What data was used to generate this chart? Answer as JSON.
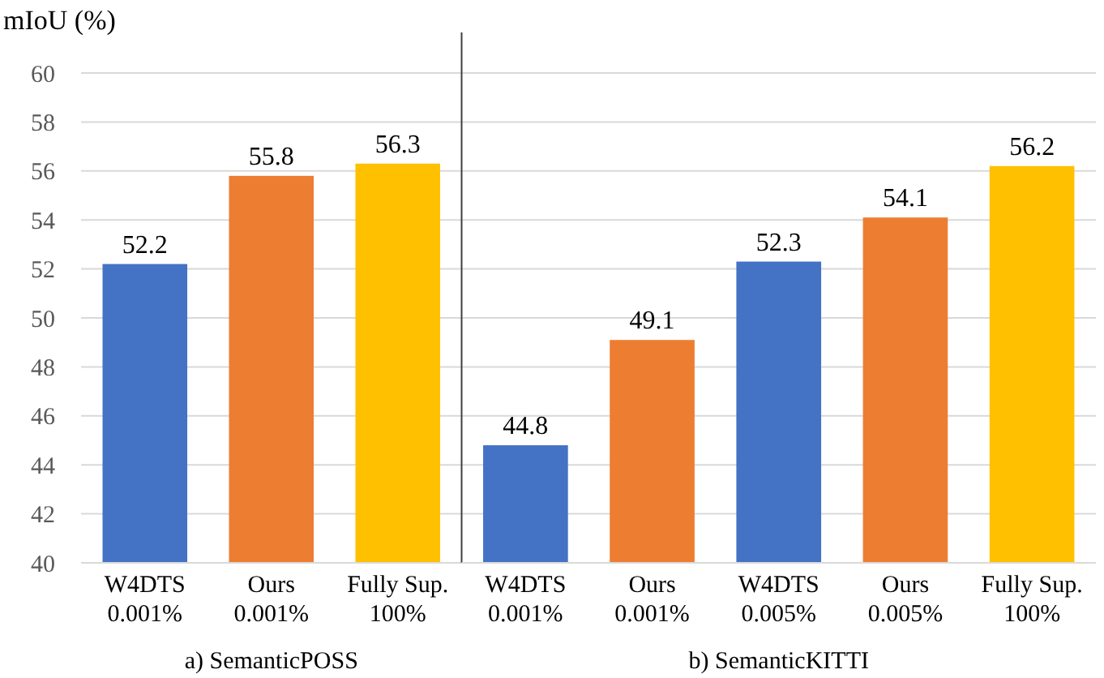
{
  "chart_data": [
    {
      "type": "bar",
      "ylabel": "mIoU (%)",
      "xlabel": "a) SemanticPOSS",
      "categories": [
        "W4DTS\n0.001%",
        "Ours\n0.001%",
        "Fully Sup.\n100%"
      ],
      "values": [
        52.2,
        55.8,
        56.3
      ],
      "colors": [
        "#4472c4",
        "#ed7d31",
        "#ffc000"
      ],
      "ylim": [
        40,
        60
      ],
      "yticks": [
        40,
        42,
        44,
        46,
        48,
        50,
        52,
        54,
        56,
        58,
        60
      ],
      "grid": "y",
      "data_labels": true
    },
    {
      "type": "bar",
      "xlabel": "b) SemanticKITTI",
      "categories": [
        "W4DTS\n0.001%",
        "Ours\n0.001%",
        "W4DTS\n0.005%",
        "Ours\n0.005%",
        "Fully Sup.\n100%"
      ],
      "values": [
        44.8,
        49.1,
        52.3,
        54.1,
        56.2
      ],
      "colors": [
        "#4472c4",
        "#ed7d31",
        "#4472c4",
        "#ed7d31",
        "#ffc000"
      ],
      "ylim": [
        40,
        60
      ],
      "yticks": [
        40,
        42,
        44,
        46,
        48,
        50,
        52,
        54,
        56,
        58,
        60
      ],
      "grid": "y",
      "data_labels": true,
      "tick_labels": "x"
    }
  ]
}
